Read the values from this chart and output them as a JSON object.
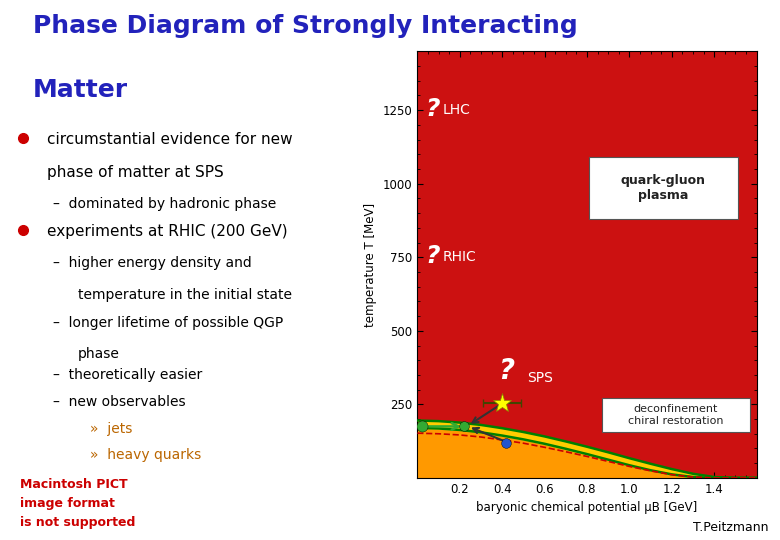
{
  "title_line1": "Phase Diagram of Strongly Interacting",
  "title_line2": "Matter",
  "title_color": "#2222bb",
  "title_fontsize": 18,
  "bg_color": "#ffffff",
  "bullet_color": "#cc0000",
  "text_color": "#000000",
  "bullet1_line1": "circumstantial evidence for new",
  "bullet1_line2": "phase of matter at SPS",
  "sub1_1": "dominated by hadronic phase",
  "bullet2": "experiments at RHIC (200 GeV)",
  "sub2_1a": "higher energy density and",
  "sub2_1b": "temperature in the initial state",
  "sub2_2a": "longer lifetime of possible QGP",
  "sub2_2b": "phase",
  "sub2_3": "theoretically easier",
  "sub2_4": "new observables",
  "sub3_1": "jets",
  "sub3_2": "heavy quarks",
  "footer_text": "T.Peitzmann",
  "macintosh_line1": "Macintosh PICT",
  "macintosh_line2": "image format",
  "macintosh_line3": "is not supported",
  "macintosh_color": "#cc0000",
  "plot_bg_red": "#cc1111",
  "plot_bg_yellow": "#ffcc00",
  "plot_bg_orange": "#ff9900",
  "qgp_label": "quark-gluon\nplasma",
  "deconf_label": "deconfinement\nchiral restoration",
  "xlabel": "baryonic chemical potential μB [GeV]",
  "ylabel": "temperature T [MeV]",
  "xlim": [
    0.0,
    1.6
  ],
  "ylim": [
    0,
    1450
  ],
  "xticks": [
    0.2,
    0.4,
    0.6,
    0.8,
    1.0,
    1.2,
    1.4
  ],
  "yticks": [
    250,
    500,
    750,
    1000,
    1250
  ],
  "pb1_x": [
    0.0,
    0.1,
    0.2,
    0.3,
    0.4,
    0.5,
    0.6,
    0.7,
    0.8,
    0.9,
    1.0,
    1.1,
    1.2,
    1.3,
    1.4,
    1.5,
    1.6
  ],
  "pb1_y": [
    170,
    168,
    163,
    155,
    144,
    131,
    116,
    99,
    81,
    62,
    43,
    26,
    12,
    3,
    0,
    0,
    0
  ],
  "pb2_x": [
    0.0,
    0.1,
    0.2,
    0.3,
    0.4,
    0.5,
    0.6,
    0.7,
    0.8,
    0.9,
    1.0,
    1.1,
    1.2,
    1.3,
    1.4,
    1.5,
    1.6
  ],
  "pb2_y": [
    195,
    193,
    188,
    180,
    169,
    156,
    141,
    124,
    106,
    87,
    67,
    48,
    30,
    14,
    3,
    0,
    0
  ],
  "dashed_x": [
    0.0,
    0.1,
    0.2,
    0.3,
    0.4,
    0.5,
    0.6,
    0.7,
    0.8,
    0.9,
    1.0,
    1.1,
    1.2,
    1.3,
    1.4,
    1.5,
    1.6
  ],
  "dashed_y": [
    152,
    150,
    146,
    139,
    129,
    118,
    104,
    89,
    73,
    56,
    39,
    24,
    11,
    3,
    0,
    0,
    0
  ]
}
